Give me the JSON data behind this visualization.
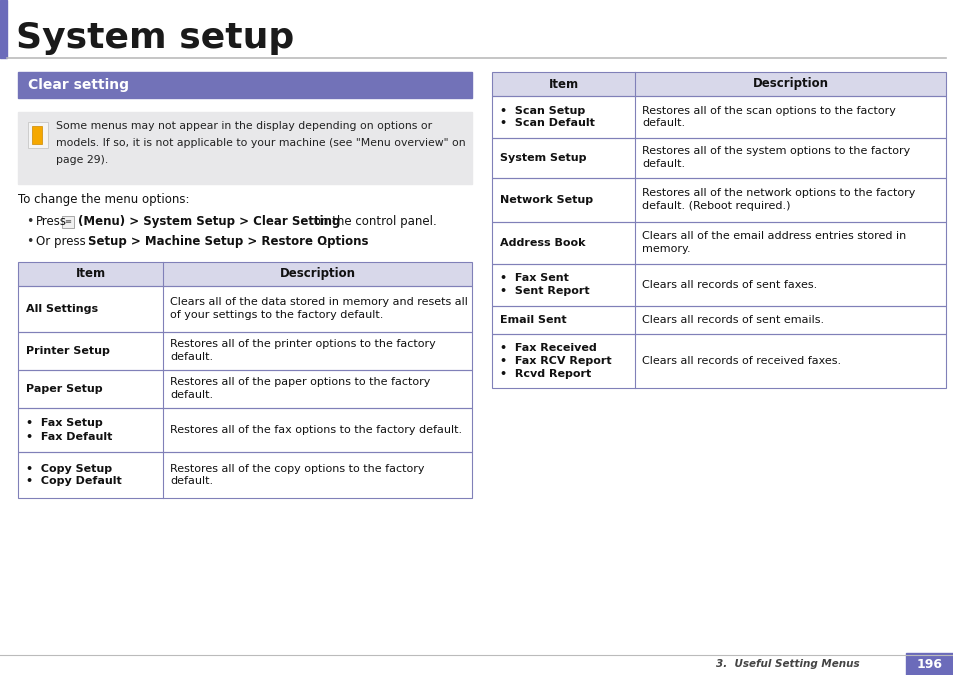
{
  "title": "System setup",
  "section_title": "Clear setting",
  "section_bg_color": "#7272b8",
  "section_title_color": "#ffffff",
  "accent_color": "#6b6bba",
  "page_bg": "#ffffff",
  "note_bg": "#e8e8ea",
  "table_header_bg": "#d8d8ea",
  "table_border_color": "#8080b8",
  "note_text_lines": [
    "Some menus may not appear in the display depending on options or",
    "models. If so, it is not applicable to your machine (see \"Menu overview\" on",
    "page 29)."
  ],
  "left_table_rows": [
    {
      "item": "All Settings",
      "bullet": false,
      "desc_lines": [
        "Clears all of the data stored in memory and resets all",
        "of your settings to the factory default."
      ]
    },
    {
      "item": "Printer Setup",
      "bullet": false,
      "desc_lines": [
        "Restores all of the printer options to the factory",
        "default."
      ]
    },
    {
      "item": "Paper Setup",
      "bullet": false,
      "desc_lines": [
        "Restores all of the paper options to the factory",
        "default."
      ]
    },
    {
      "item_lines": [
        "•  Fax Setup",
        "•  Fax Default"
      ],
      "bullet": true,
      "desc_lines": [
        "Restores all of the fax options to the factory default."
      ]
    },
    {
      "item_lines": [
        "•  Copy Setup",
        "•  Copy Default"
      ],
      "bullet": true,
      "desc_lines": [
        "Restores all of the copy options to the factory",
        "default."
      ]
    }
  ],
  "right_table_rows": [
    {
      "item_lines": [
        "•  Scan Setup",
        "•  Scan Default"
      ],
      "bullet": true,
      "desc_lines": [
        "Restores all of the scan options to the factory",
        "default."
      ]
    },
    {
      "item": "System Setup",
      "bullet": false,
      "desc_lines": [
        "Restores all of the system options to the factory",
        "default."
      ]
    },
    {
      "item": "Network Setup",
      "bullet": false,
      "desc_lines": [
        "Restores all of the network options to the factory",
        "default. (Reboot required.)"
      ]
    },
    {
      "item": "Address Book",
      "bullet": false,
      "desc_lines": [
        "Clears all of the email address entries stored in",
        "memory."
      ]
    },
    {
      "item_lines": [
        "•  Fax Sent",
        "•  Sent Report"
      ],
      "bullet": true,
      "desc_lines": [
        "Clears all records of sent faxes."
      ]
    },
    {
      "item": "Email Sent",
      "bullet": false,
      "desc_lines": [
        "Clears all records of sent emails."
      ]
    },
    {
      "item_lines": [
        "•  Fax Received",
        "•  Fax RCV Report",
        "•  Rcvd Report"
      ],
      "bullet": true,
      "desc_lines": [
        "Clears all records of received faxes."
      ]
    }
  ],
  "footer_text": "3.  Useful Setting Menus",
  "page_number": "196"
}
